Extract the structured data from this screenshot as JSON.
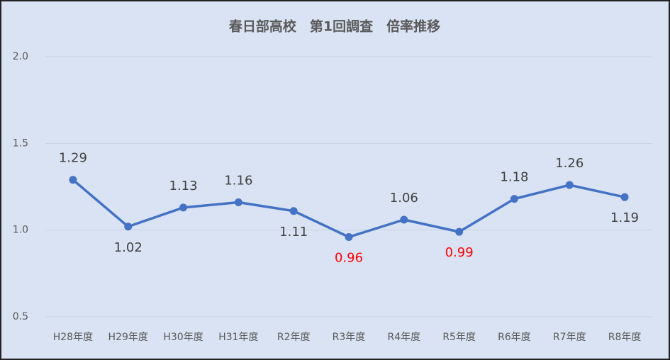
{
  "chart_data": {
    "type": "line",
    "title": "春日部高校　第1回調査　倍率推移",
    "categories": [
      "H28年度",
      "H29年度",
      "H30年度",
      "H31年度",
      "R2年度",
      "R3年度",
      "R4年度",
      "R5年度",
      "R6年度",
      "R7年度",
      "R8年度"
    ],
    "series": [
      {
        "name": "倍率",
        "color": "#4472c4",
        "values": [
          1.29,
          1.02,
          1.13,
          1.16,
          1.11,
          0.96,
          1.06,
          0.99,
          1.18,
          1.26,
          1.19
        ],
        "label_colors": [
          "#404040",
          "#404040",
          "#404040",
          "#404040",
          "#404040",
          "#ff0000",
          "#404040",
          "#ff0000",
          "#404040",
          "#404040",
          "#404040"
        ]
      }
    ],
    "ylim": [
      0.5,
      2.0
    ],
    "yticks": [
      0.5,
      {
        "value": 1,
        "label": "1.0"
      },
      1.5,
      {
        "value": 2,
        "label": "2.0"
      }
    ],
    "grid": true,
    "background": "#dae3f3"
  }
}
